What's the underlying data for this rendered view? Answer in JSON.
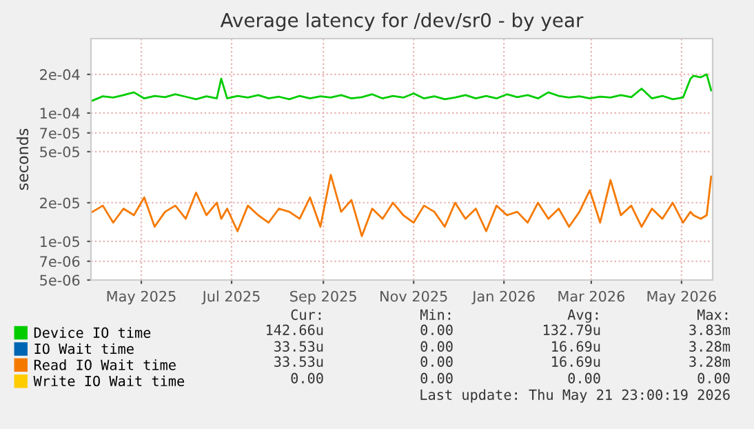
{
  "chart_data": {
    "type": "line",
    "title": "Average latency for /dev/sr0 - by year",
    "ylabel": "seconds",
    "x": [
      "2025-03-29",
      "2025-04-05",
      "2025-04-12",
      "2025-04-19",
      "2025-04-26",
      "2025-05-03",
      "2025-05-10",
      "2025-05-17",
      "2025-05-24",
      "2025-05-31",
      "2025-06-07",
      "2025-06-14",
      "2025-06-21",
      "2025-06-24",
      "2025-06-28",
      "2025-07-05",
      "2025-07-12",
      "2025-07-19",
      "2025-07-26",
      "2025-08-02",
      "2025-08-09",
      "2025-08-16",
      "2025-08-23",
      "2025-08-30",
      "2025-09-06",
      "2025-09-13",
      "2025-09-20",
      "2025-09-27",
      "2025-10-04",
      "2025-10-11",
      "2025-10-18",
      "2025-10-25",
      "2025-11-01",
      "2025-11-08",
      "2025-11-15",
      "2025-11-22",
      "2025-11-29",
      "2025-12-06",
      "2025-12-13",
      "2025-12-20",
      "2025-12-27",
      "2026-01-03",
      "2026-01-10",
      "2026-01-17",
      "2026-01-24",
      "2026-01-31",
      "2026-02-07",
      "2026-02-14",
      "2026-02-21",
      "2026-02-28",
      "2026-03-07",
      "2026-03-14",
      "2026-03-21",
      "2026-03-28",
      "2026-04-04",
      "2026-04-11",
      "2026-04-18",
      "2026-04-25",
      "2026-05-02",
      "2026-05-07",
      "2026-05-09",
      "2026-05-14",
      "2026-05-18",
      "2026-05-21"
    ],
    "series": [
      {
        "name": "Device IO time",
        "color": "#00cc00",
        "values": [
          0.000125,
          0.000135,
          0.000132,
          0.000138,
          0.000145,
          0.00013,
          0.000136,
          0.000133,
          0.00014,
          0.000134,
          0.000128,
          0.000135,
          0.00013,
          0.000185,
          0.00013,
          0.000136,
          0.000132,
          0.000138,
          0.00013,
          0.000134,
          0.000128,
          0.000136,
          0.00013,
          0.000135,
          0.000132,
          0.000138,
          0.00013,
          0.000133,
          0.00014,
          0.00013,
          0.000136,
          0.000132,
          0.000142,
          0.00013,
          0.000135,
          0.000128,
          0.000132,
          0.000138,
          0.00013,
          0.000136,
          0.00013,
          0.00014,
          0.000133,
          0.000138,
          0.00013,
          0.000145,
          0.000136,
          0.000132,
          0.000135,
          0.00013,
          0.000134,
          0.000132,
          0.000138,
          0.000133,
          0.000155,
          0.00013,
          0.000136,
          0.000128,
          0.000132,
          0.000185,
          0.000195,
          0.00019,
          0.0002,
          0.00015
        ]
      },
      {
        "name": "IO Wait time",
        "color": "#0066b3",
        "values": [
          null,
          null,
          null,
          null,
          null,
          null,
          null,
          null,
          null,
          null,
          null,
          null,
          null,
          null,
          null,
          null,
          null,
          null,
          null,
          null,
          null,
          null,
          null,
          null,
          null,
          null,
          null,
          null,
          null,
          null,
          null,
          null,
          null,
          null,
          null,
          null,
          null,
          null,
          null,
          null,
          null,
          null,
          null,
          null,
          null,
          null,
          null,
          null,
          null,
          null,
          null,
          null,
          null,
          null,
          null,
          null,
          null,
          null,
          null,
          null,
          null,
          null,
          null,
          null
        ]
      },
      {
        "name": "Read IO Wait time",
        "color": "#f57900",
        "values": [
          1.7e-05,
          1.9e-05,
          1.4e-05,
          1.8e-05,
          1.6e-05,
          2.2e-05,
          1.3e-05,
          1.7e-05,
          1.9e-05,
          1.5e-05,
          2.4e-05,
          1.6e-05,
          2e-05,
          1.5e-05,
          1.8e-05,
          1.2e-05,
          1.9e-05,
          1.6e-05,
          1.4e-05,
          1.8e-05,
          1.7e-05,
          1.5e-05,
          2.2e-05,
          1.3e-05,
          3.3e-05,
          1.7e-05,
          2.1e-05,
          1.1e-05,
          1.8e-05,
          1.5e-05,
          2e-05,
          1.6e-05,
          1.4e-05,
          1.9e-05,
          1.7e-05,
          1.3e-05,
          2e-05,
          1.5e-05,
          1.8e-05,
          1.2e-05,
          1.9e-05,
          1.6e-05,
          1.7e-05,
          1.4e-05,
          2e-05,
          1.5e-05,
          1.8e-05,
          1.3e-05,
          1.7e-05,
          2.5e-05,
          1.4e-05,
          3e-05,
          1.6e-05,
          1.9e-05,
          1.3e-05,
          1.8e-05,
          1.5e-05,
          2e-05,
          1.4e-05,
          1.7e-05,
          1.6e-05,
          1.5e-05,
          1.6e-05,
          3.2e-05
        ]
      },
      {
        "name": "Write IO Wait time",
        "color": "#ffcc00",
        "values": [
          null,
          null,
          null,
          null,
          null,
          null,
          null,
          null,
          null,
          null,
          null,
          null,
          null,
          null,
          null,
          null,
          null,
          null,
          null,
          null,
          null,
          null,
          null,
          null,
          null,
          null,
          null,
          null,
          null,
          null,
          null,
          null,
          null,
          null,
          null,
          null,
          null,
          null,
          null,
          null,
          null,
          null,
          null,
          null,
          null,
          null,
          null,
          null,
          null,
          null,
          null,
          null,
          null,
          null,
          null,
          null,
          null,
          null,
          null,
          null,
          null,
          null,
          null,
          null
        ]
      }
    ],
    "log": "y",
    "xlim": [
      "2025-03-28",
      "2026-05-22"
    ],
    "xticks": [
      {
        "value": "2025-05-01",
        "label": "May 2025"
      },
      {
        "value": "2025-07-01",
        "label": "Jul 2025"
      },
      {
        "value": "2025-09-01",
        "label": "Sep 2025"
      },
      {
        "value": "2025-11-01",
        "label": "Nov 2025"
      },
      {
        "value": "2026-01-01",
        "label": "Jan 2026"
      },
      {
        "value": "2026-03-01",
        "label": "Mar 2026"
      },
      {
        "value": "2026-05-01",
        "label": "May 2026"
      }
    ],
    "ylim": [
      5e-06,
      0.00038
    ],
    "yticks": [
      {
        "value": 5e-06,
        "label": "5e-06"
      },
      {
        "value": 7e-06,
        "label": "7e-06"
      },
      {
        "value": 1e-05,
        "label": "1e-05"
      },
      {
        "value": 2e-05,
        "label": "2e-05"
      },
      {
        "value": 5e-05,
        "label": "5e-05"
      },
      {
        "value": 7e-05,
        "label": "7e-05"
      },
      {
        "value": 0.0001,
        "label": "1e-04"
      },
      {
        "value": 0.0002,
        "label": "2e-04"
      }
    ],
    "grid": true,
    "legend": "bottom left",
    "annotations": [
      "Cur:",
      "Min:",
      "Avg:",
      "Max:",
      "142.66u",
      "0.00",
      "132.79u",
      "3.83m",
      "33.53u",
      "0.00",
      "16.69u",
      "3.28m",
      "33.53u",
      "0.00",
      "16.69u",
      "3.28m",
      "0.00",
      "0.00",
      "0.00",
      "0.00",
      "Last update: Thu May 21 23:00:19 2026"
    ]
  }
}
